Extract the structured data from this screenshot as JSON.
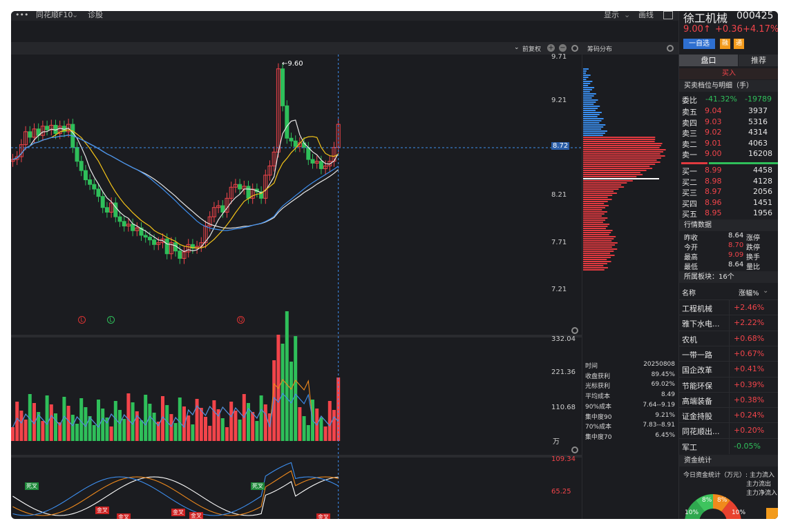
{
  "toolbar": {
    "dots": "•••",
    "f10": "同花顺F10",
    "diag": "诊股",
    "display": "显示",
    "draw": "画线"
  },
  "kchart": {
    "adjust": "前复权",
    "peak": "←9.60",
    "crosshair_price": "8.72",
    "price_ticks": [
      "9.71",
      "9.21",
      "8.72",
      "8.21",
      "7.71",
      "7.21"
    ],
    "markers": [
      "L",
      "L",
      "Q"
    ]
  },
  "volume": {
    "ticks": [
      "332.04",
      "221.36",
      "110.68",
      "万"
    ]
  },
  "macd": {
    "ticks": [
      "109.34",
      "65.25"
    ],
    "tags": [
      "死叉",
      "死叉",
      "金叉",
      "金叉",
      "金叉",
      "金叉",
      "金叉"
    ]
  },
  "chips": {
    "title": "筹码分布",
    "stats": [
      {
        "k": "时间",
        "v": "20250808"
      },
      {
        "k": "收盘获利",
        "v": "89.45%"
      },
      {
        "k": "光标获利",
        "v": "69.02%"
      },
      {
        "k": "平均成本",
        "v": "8.49"
      },
      {
        "k": "90%成本",
        "v": "7.64--9.19"
      },
      {
        "k": "集中度90",
        "v": "9.21%"
      },
      {
        "k": "70%成本",
        "v": "7.83--8.91"
      },
      {
        "k": "集中度70",
        "v": "6.45%"
      }
    ]
  },
  "stock": {
    "name": "徐工机械",
    "code": "000425",
    "price": "9.00↑",
    "change": "+0.36",
    "pct": "+4.17%",
    "fav": "一自选",
    "tag1": "融",
    "tag2": "通"
  },
  "tabs": {
    "t1": "盘口",
    "t2": "推荐"
  },
  "buy_label": "买入",
  "orderbook": {
    "title": "买卖档位与明细（手）",
    "ratio_label": "委比",
    "ratio_pct": "-41.32%",
    "ratio_val": "-19789",
    "asks": [
      {
        "l": "卖五",
        "p": "9.04",
        "v": "3937"
      },
      {
        "l": "卖四",
        "p": "9.03",
        "v": "5316"
      },
      {
        "l": "卖三",
        "p": "9.02",
        "v": "4314"
      },
      {
        "l": "卖二",
        "p": "9.01",
        "v": "4063"
      },
      {
        "l": "卖一",
        "p": "9.00",
        "v": "16208"
      }
    ],
    "bids": [
      {
        "l": "买一",
        "p": "8.99",
        "v": "4458"
      },
      {
        "l": "买二",
        "p": "8.98",
        "v": "4128"
      },
      {
        "l": "买三",
        "p": "8.97",
        "v": "2056"
      },
      {
        "l": "买四",
        "p": "8.96",
        "v": "1451"
      },
      {
        "l": "买五",
        "p": "8.95",
        "v": "1956"
      }
    ]
  },
  "quote": {
    "title": "行情数据",
    "rows": [
      {
        "k": "昨收",
        "v": "8.64",
        "k2": "涨停"
      },
      {
        "k": "今开",
        "v": "8.70",
        "k2": "跌停"
      },
      {
        "k": "最高",
        "v": "9.09",
        "k2": "换手"
      },
      {
        "k": "最低",
        "v": "8.64",
        "k2": "量比"
      }
    ]
  },
  "sectors": {
    "title": "所属板块：16个",
    "col1": "名称",
    "col2": "涨幅%",
    "items": [
      {
        "n": "工程机械",
        "v": "+2.46%"
      },
      {
        "n": "雅下水电...",
        "v": "+2.22%"
      },
      {
        "n": "农机",
        "v": "+0.68%"
      },
      {
        "n": "一带一路",
        "v": "+0.67%"
      },
      {
        "n": "国企改革",
        "v": "+0.41%"
      },
      {
        "n": "节能环保",
        "v": "+0.39%"
      },
      {
        "n": "高端装备",
        "v": "+0.38%"
      },
      {
        "n": "证金持股",
        "v": "+0.24%"
      },
      {
        "n": "同花顺出...",
        "v": "+0.20%"
      },
      {
        "n": "军工",
        "v": "-0.05%"
      }
    ]
  },
  "fund": {
    "title": "资金统计",
    "label": "今日资金统计（万元）:",
    "in": "主力流入",
    "out": "主力流出",
    "net": "主力净流入",
    "pie": [
      "10%",
      "8%",
      "8%",
      "10%"
    ]
  },
  "colors": {
    "up": "#f2444a",
    "down": "#2fbf5a",
    "bg": "#1b1c20",
    "accent": "#3d8ff0"
  }
}
